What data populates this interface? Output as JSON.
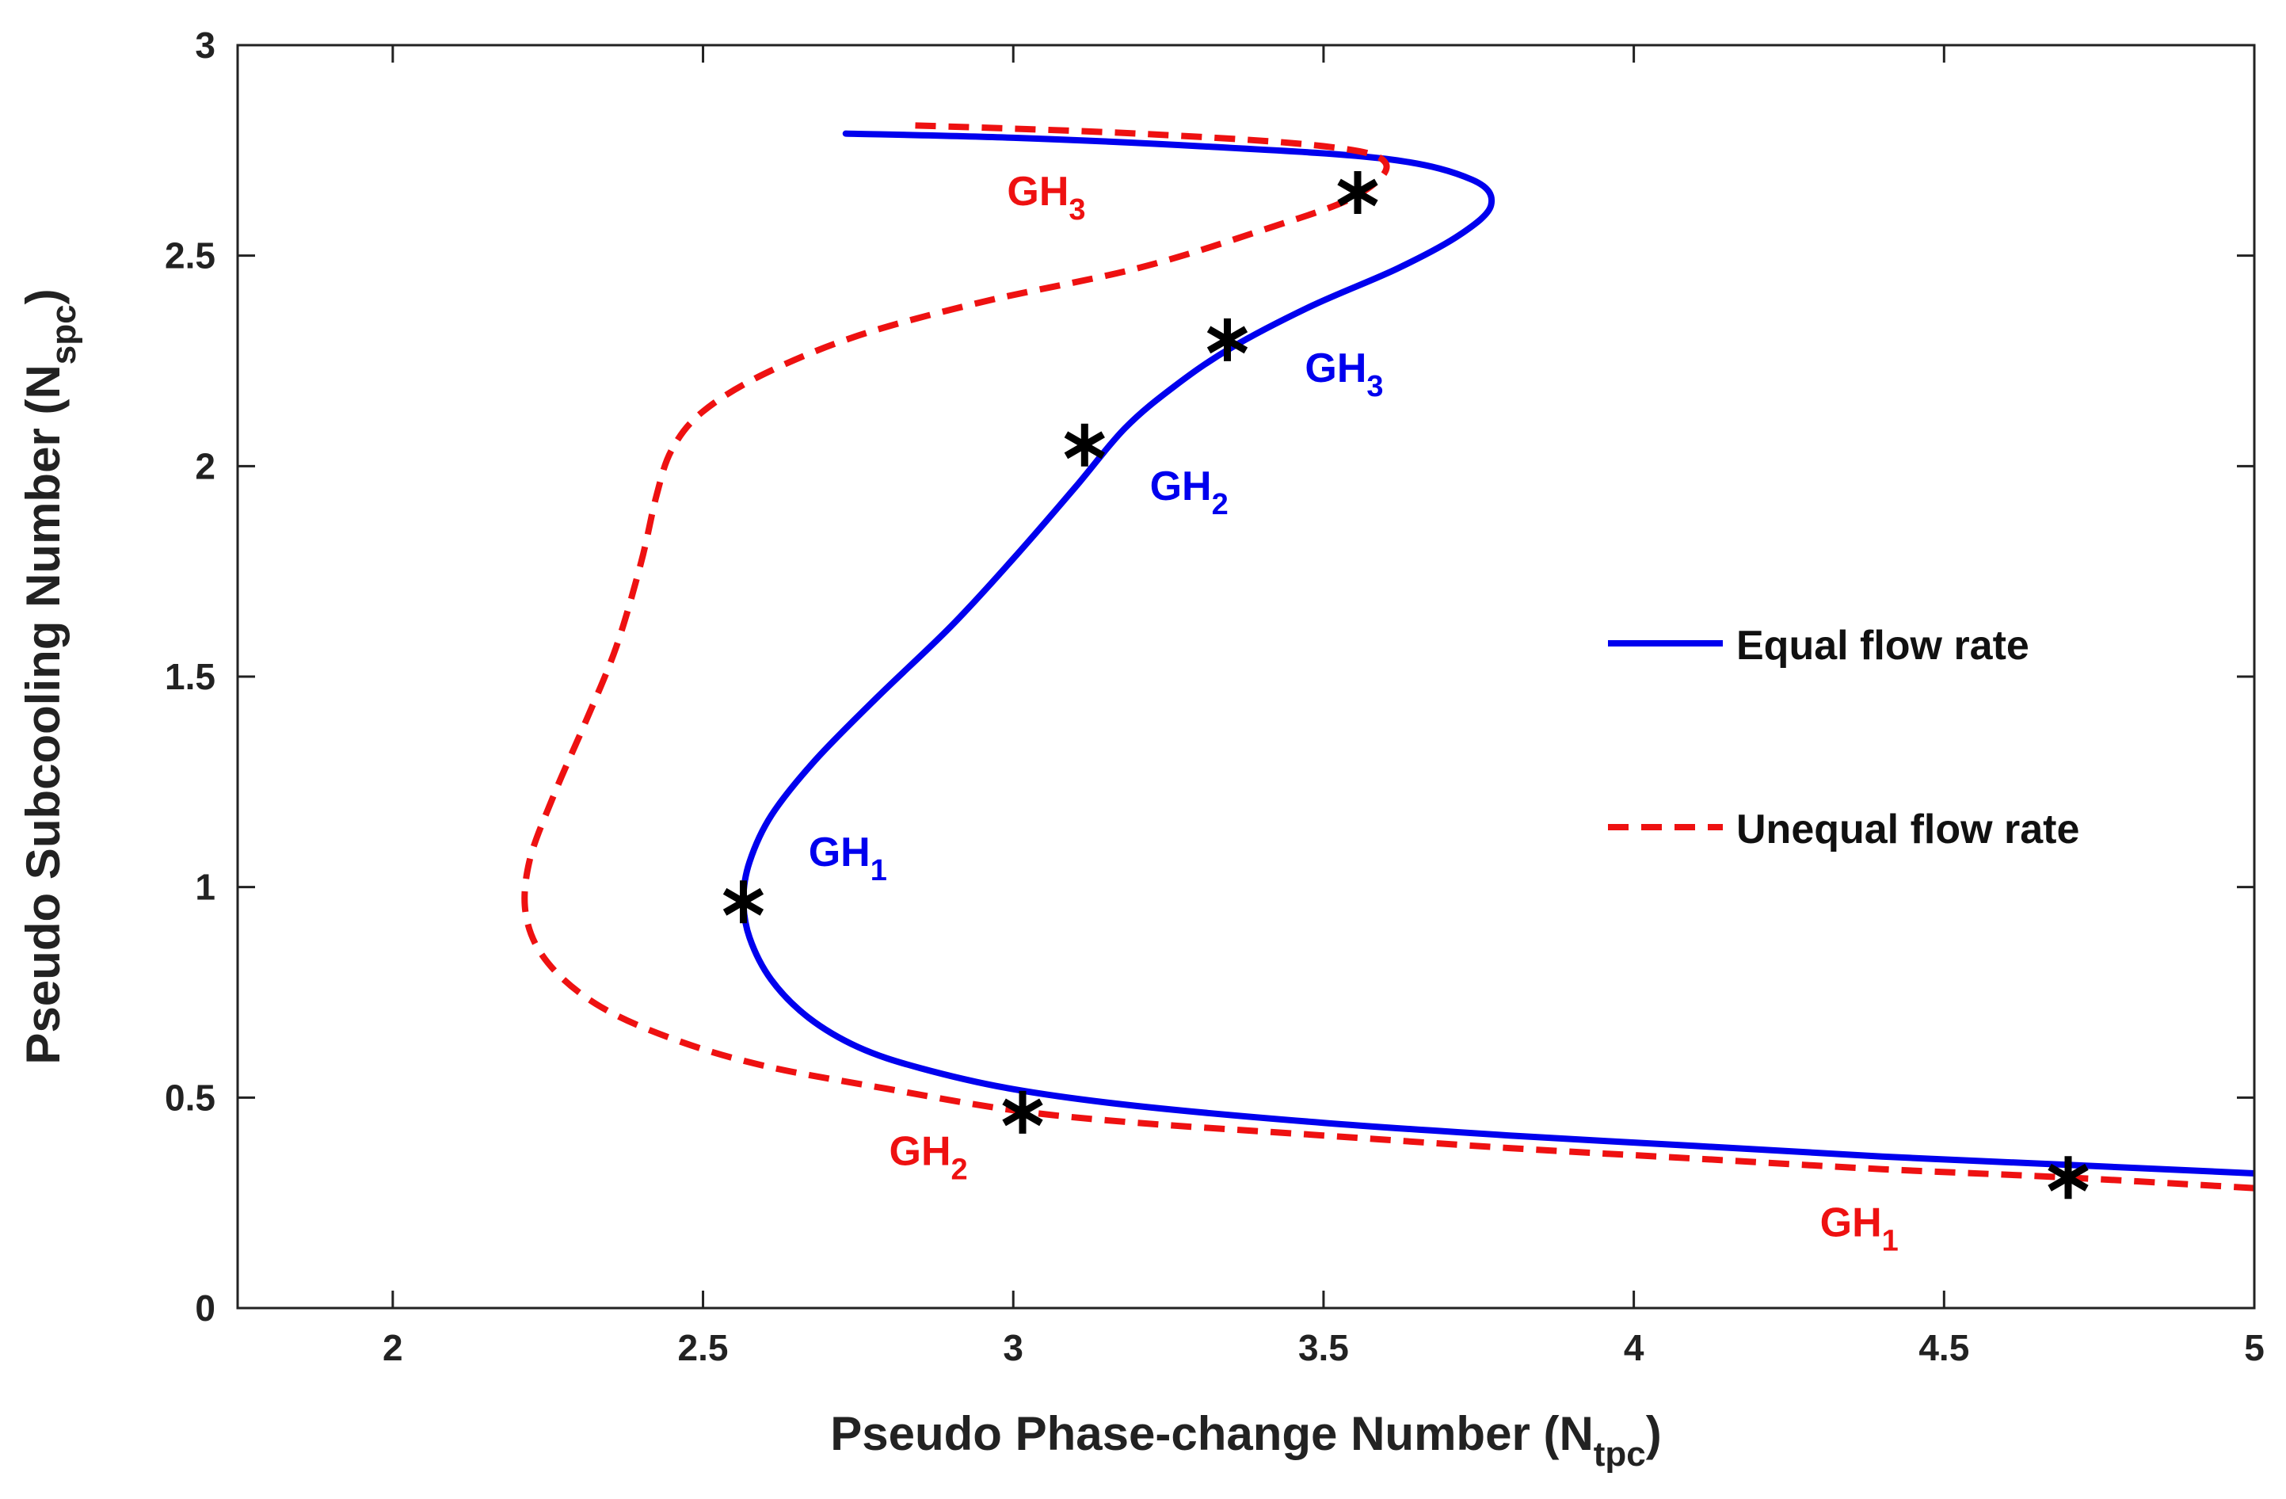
{
  "chart_data": {
    "type": "line",
    "title": "",
    "xlabel": {
      "main": "Pseudo Phase-change Number (N",
      "sub": "tpc",
      "close": ")"
    },
    "ylabel": {
      "main": "Pseudo Subcooling Number (N",
      "sub": "spc",
      "close": ")"
    },
    "xlim": [
      1.75,
      5
    ],
    "ylim": [
      0,
      3
    ],
    "xticks": [
      2,
      2.5,
      3,
      3.5,
      4,
      4.5,
      5
    ],
    "xtick_labels": [
      "2",
      "2.5",
      "3",
      "3.5",
      "4",
      "4.5",
      "5"
    ],
    "yticks": [
      0,
      0.5,
      1,
      1.5,
      2,
      2.5,
      3
    ],
    "ytick_labels": [
      "0",
      "0.5",
      "1",
      "1.5",
      "2",
      "2.5",
      "3"
    ],
    "legend_position": "right",
    "colors": {
      "equal": "#0000ee",
      "unequal": "#ee1111",
      "marker": "#000000",
      "axis": "#222222"
    },
    "series": [
      {
        "name": "Equal flow rate",
        "style": "solid",
        "color": "#0000ee",
        "points": [
          [
            5.0,
            0.32
          ],
          [
            4.7,
            0.34
          ],
          [
            4.4,
            0.36
          ],
          [
            4.1,
            0.385
          ],
          [
            3.8,
            0.41
          ],
          [
            3.5,
            0.44
          ],
          [
            3.2,
            0.48
          ],
          [
            3.0,
            0.52
          ],
          [
            2.85,
            0.57
          ],
          [
            2.75,
            0.62
          ],
          [
            2.67,
            0.69
          ],
          [
            2.61,
            0.78
          ],
          [
            2.575,
            0.88
          ],
          [
            2.565,
            0.97
          ],
          [
            2.575,
            1.06
          ],
          [
            2.61,
            1.17
          ],
          [
            2.68,
            1.3
          ],
          [
            2.78,
            1.45
          ],
          [
            2.9,
            1.62
          ],
          [
            3.0,
            1.78
          ],
          [
            3.1,
            1.95
          ],
          [
            3.18,
            2.09
          ],
          [
            3.26,
            2.19
          ],
          [
            3.35,
            2.28
          ],
          [
            3.48,
            2.38
          ],
          [
            3.62,
            2.47
          ],
          [
            3.72,
            2.55
          ],
          [
            3.77,
            2.62
          ],
          [
            3.74,
            2.68
          ],
          [
            3.6,
            2.73
          ],
          [
            3.3,
            2.76
          ],
          [
            3.0,
            2.78
          ],
          [
            2.73,
            2.79
          ]
        ]
      },
      {
        "name": "Unequal flow rate",
        "style": "dashed",
        "color": "#ee1111",
        "points": [
          [
            5.0,
            0.285
          ],
          [
            4.7,
            0.31
          ],
          [
            4.4,
            0.33
          ],
          [
            4.1,
            0.355
          ],
          [
            3.8,
            0.38
          ],
          [
            3.5,
            0.41
          ],
          [
            3.2,
            0.44
          ],
          [
            3.0,
            0.47
          ],
          [
            2.8,
            0.52
          ],
          [
            2.6,
            0.575
          ],
          [
            2.45,
            0.64
          ],
          [
            2.33,
            0.72
          ],
          [
            2.25,
            0.82
          ],
          [
            2.215,
            0.93
          ],
          [
            2.22,
            1.06
          ],
          [
            2.26,
            1.22
          ],
          [
            2.31,
            1.39
          ],
          [
            2.36,
            1.57
          ],
          [
            2.4,
            1.77
          ],
          [
            2.425,
            1.93
          ],
          [
            2.45,
            2.04
          ],
          [
            2.5,
            2.13
          ],
          [
            2.6,
            2.22
          ],
          [
            2.75,
            2.31
          ],
          [
            2.95,
            2.39
          ],
          [
            3.2,
            2.47
          ],
          [
            3.4,
            2.56
          ],
          [
            3.55,
            2.64
          ],
          [
            3.6,
            2.72
          ],
          [
            3.5,
            2.76
          ],
          [
            3.2,
            2.79
          ],
          [
            2.83,
            2.81
          ]
        ]
      }
    ],
    "markers": [
      {
        "series": "Equal flow rate",
        "x": 2.565,
        "y": 0.965
      },
      {
        "series": "Equal flow rate",
        "x": 3.115,
        "y": 2.05
      },
      {
        "series": "Equal flow rate",
        "x": 3.345,
        "y": 2.3
      },
      {
        "series": "Unequal flow rate",
        "x": 3.555,
        "y": 2.65
      },
      {
        "series": "Unequal flow rate",
        "x": 3.015,
        "y": 0.465
      },
      {
        "series": "Unequal flow rate",
        "x": 4.7,
        "y": 0.31
      }
    ],
    "annotations": [
      {
        "main": "GH",
        "sub": "1",
        "series": "Equal flow rate",
        "x": 2.67,
        "y": 1.05
      },
      {
        "main": "GH",
        "sub": "2",
        "series": "Equal flow rate",
        "x": 3.22,
        "y": 1.92
      },
      {
        "main": "GH",
        "sub": "3",
        "series": "Equal flow rate",
        "x": 3.47,
        "y": 2.2
      },
      {
        "main": "GH",
        "sub": "3",
        "series": "Unequal flow rate",
        "x": 2.99,
        "y": 2.62
      },
      {
        "main": "GH",
        "sub": "2",
        "series": "Unequal flow rate",
        "x": 2.8,
        "y": 0.34
      },
      {
        "main": "GH",
        "sub": "1",
        "series": "Unequal flow rate",
        "x": 4.3,
        "y": 0.17
      }
    ]
  }
}
